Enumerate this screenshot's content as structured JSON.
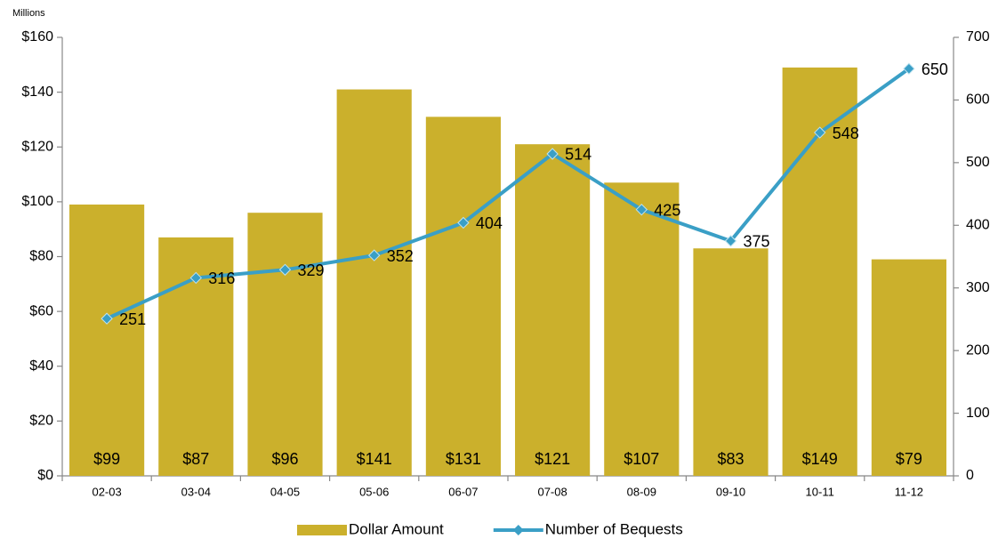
{
  "chart_data": {
    "type": "combo",
    "ylabel": "Millions",
    "categories": [
      "02-03",
      "03-04",
      "04-05",
      "05-06",
      "06-07",
      "07-08",
      "08-09",
      "09-10",
      "10-11",
      "11-12"
    ],
    "series": [
      {
        "name": "Dollar Amount",
        "type": "bar",
        "color": "#cbb02c",
        "values": [
          99,
          87,
          96,
          141,
          131,
          121,
          107,
          83,
          149,
          79
        ],
        "value_labels": [
          "$99",
          "$87",
          "$96",
          "$141",
          "$131",
          "$121",
          "$107",
          "$83",
          "$149",
          "$79"
        ]
      },
      {
        "name": "Number of Bequests",
        "type": "line",
        "color": "#3a9fc6",
        "axis": "y2",
        "values": [
          251,
          316,
          329,
          352,
          404,
          514,
          425,
          375,
          548,
          650
        ]
      }
    ],
    "ylim": [
      0,
      160
    ],
    "yticks": [
      {
        "value": 0,
        "label": "$0"
      },
      {
        "value": 20,
        "label": "$20"
      },
      {
        "value": 40,
        "label": "$40"
      },
      {
        "value": 60,
        "label": "$60"
      },
      {
        "value": 80,
        "label": "$80"
      },
      {
        "value": 100,
        "label": "$100"
      },
      {
        "value": 120,
        "label": "$120"
      },
      {
        "value": 140,
        "label": "$140"
      },
      {
        "value": 160,
        "label": "$160"
      }
    ],
    "y2lim": [
      0,
      700
    ],
    "y2ticks": [
      0,
      100,
      200,
      300,
      400,
      500,
      600,
      700
    ],
    "grid": false,
    "legend": "bottom"
  }
}
